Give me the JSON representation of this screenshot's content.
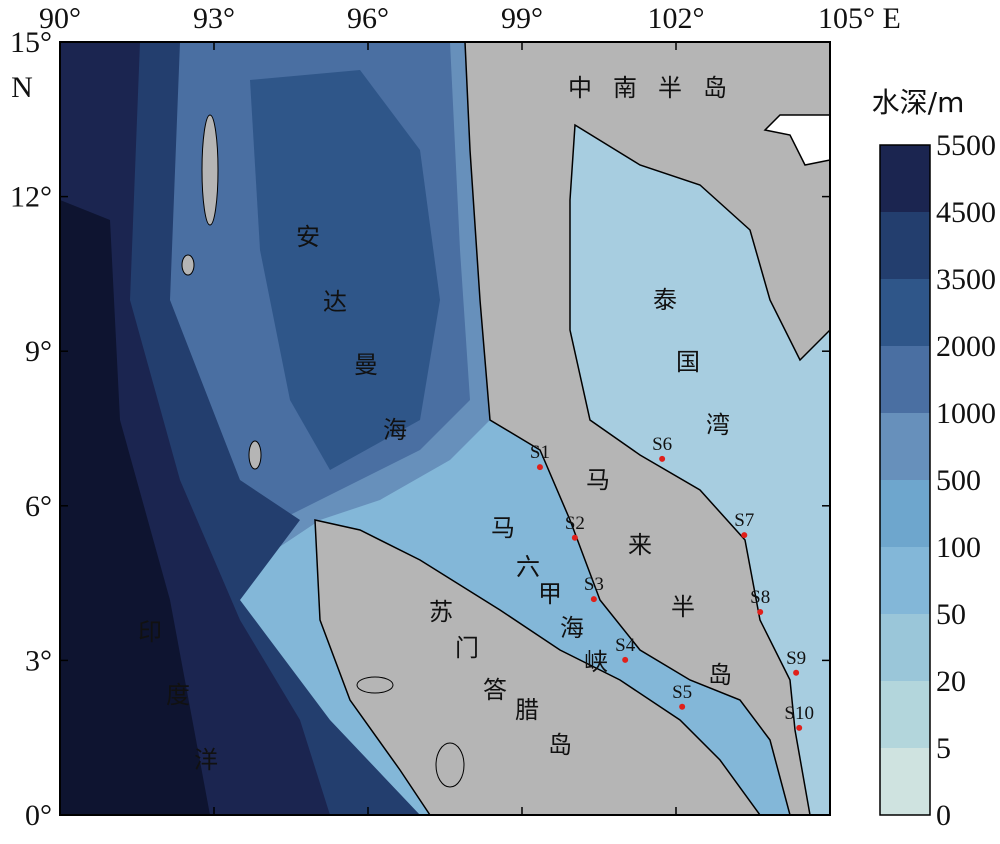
{
  "map": {
    "xticks": [
      {
        "value": 90,
        "label": "90°"
      },
      {
        "value": 93,
        "label": "93°"
      },
      {
        "value": 96,
        "label": "96°"
      },
      {
        "value": 99,
        "label": "99°"
      },
      {
        "value": 102,
        "label": "102°"
      },
      {
        "value": 105,
        "label": "105° E"
      }
    ],
    "yticks": [
      {
        "value": 0,
        "label": "0°"
      },
      {
        "value": 3,
        "label": "3°"
      },
      {
        "value": 6,
        "label": "6°"
      },
      {
        "value": 9,
        "label": "9°"
      },
      {
        "value": 12,
        "label": "12°"
      },
      {
        "value": 15,
        "label": "15°"
      }
    ],
    "lat_unit": "N",
    "xlim": [
      90,
      105
    ],
    "ylim": [
      0,
      15
    ],
    "regions": [
      "中南半岛",
      "泰国湾",
      "安达曼海",
      "马来半岛",
      "马六甲海峡",
      "苏门答腊岛",
      "印度洋"
    ],
    "stations": [
      {
        "name": "S1",
        "lon": 99.35,
        "lat": 6.75
      },
      {
        "name": "S2",
        "lon": 100.03,
        "lat": 5.38
      },
      {
        "name": "S3",
        "lon": 100.4,
        "lat": 4.19
      },
      {
        "name": "S4",
        "lon": 101.01,
        "lat": 3.01
      },
      {
        "name": "S5",
        "lon": 102.12,
        "lat": 2.1
      },
      {
        "name": "S6",
        "lon": 101.73,
        "lat": 6.91
      },
      {
        "name": "S7",
        "lon": 103.33,
        "lat": 5.43
      },
      {
        "name": "S8",
        "lon": 103.64,
        "lat": 3.94
      },
      {
        "name": "S9",
        "lon": 104.34,
        "lat": 2.76
      },
      {
        "name": "S10",
        "lon": 104.4,
        "lat": 1.69
      }
    ],
    "station_color": "#e0201b"
  },
  "colorbar": {
    "title": "水深/m",
    "levels": [
      0,
      5,
      20,
      50,
      100,
      500,
      1000,
      2000,
      3500,
      4500,
      5500
    ],
    "colors": [
      "#cfe3e0",
      "#b3d6dc",
      "#9ac6d9",
      "#83b7d8",
      "#6ea6cd",
      "#6790bb",
      "#4a6fa2",
      "#2f5689",
      "#233e6e",
      "#1b2550"
    ]
  }
}
